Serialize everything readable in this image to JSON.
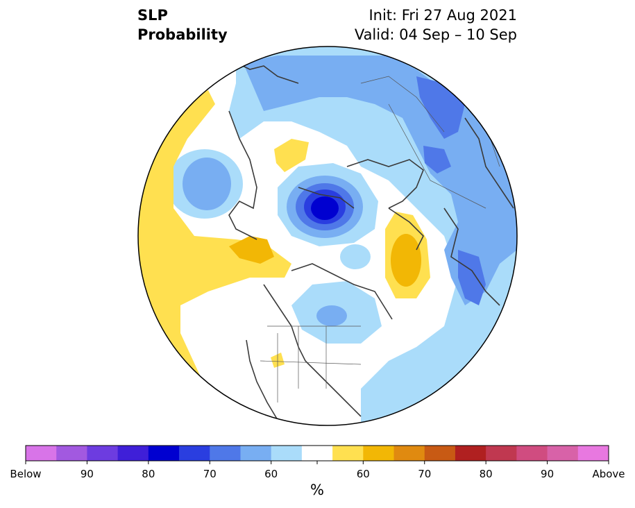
{
  "title": {
    "left_line1": "SLP",
    "left_line2": "Probability",
    "init": "Init: Fri 27 Aug 2021",
    "valid": "Valid: 04 Sep – 10 Sep"
  },
  "colorbar": {
    "unit": "%",
    "colors": [
      "#d874e8",
      "#a259e0",
      "#6d3ce0",
      "#3f1fd8",
      "#0000d0",
      "#2a3ee0",
      "#4f78e8",
      "#78aef2",
      "#aadcfa",
      "#ffffff",
      "#ffe050",
      "#f2b705",
      "#e08a10",
      "#c85a14",
      "#b02020",
      "#c03850",
      "#d04c80",
      "#d862a8",
      "#e878e0"
    ],
    "tick_labels": [
      "Below",
      "90",
      "80",
      "70",
      "60",
      "",
      "60",
      "70",
      "80",
      "90",
      "Above"
    ],
    "level_colors": {
      "below_90": "#a259e0",
      "below_80": "#0000d0",
      "below_70": "#4f78e8",
      "below_60": "#aadcfa",
      "below_55": "#78aef2",
      "neutral": "#ffffff",
      "above_55": "#ffe050",
      "above_60": "#f2b705"
    }
  },
  "map_features": {
    "projection": "north-polar-stereographic",
    "coastline_color": "#3a3a3a",
    "border_color": "#555555",
    "blobs": [
      {
        "name": "arctic-low-core",
        "level": "below_80"
      },
      {
        "name": "arctic-low-70",
        "level": "below_70"
      },
      {
        "name": "arctic-low-60",
        "level": "below_60"
      },
      {
        "name": "north-pacific-low",
        "level": "below_60"
      },
      {
        "name": "siberia-low",
        "level": "below_70"
      },
      {
        "name": "eurasia-ring",
        "level": "below_55"
      },
      {
        "name": "hudson-bay-low",
        "level": "below_60"
      },
      {
        "name": "scandinavia-high",
        "level": "above_60"
      },
      {
        "name": "alaska-high",
        "level": "above_60"
      },
      {
        "name": "pacific-high",
        "level": "above_55"
      },
      {
        "name": "east-siberia-high",
        "level": "above_55"
      },
      {
        "name": "rockies-high",
        "level": "above_55"
      },
      {
        "name": "atlantic-low",
        "level": "below_55"
      }
    ]
  }
}
